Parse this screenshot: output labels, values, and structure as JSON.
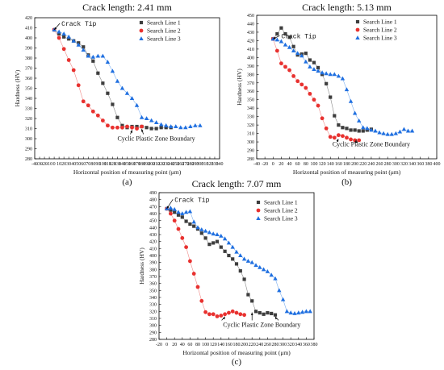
{
  "colors": {
    "search_line_1": "#3d3d3d",
    "search_line_2": "#e8312f",
    "search_line_3": "#1f6fe0",
    "axis": "#000000"
  },
  "chart_data": [
    {
      "type": "scatter",
      "panel_label": "(a)",
      "title": "Crack length: 2.41 mm",
      "xlabel": "Horizontal position of measuring point (μm)",
      "ylabel": "Hardness (HV)",
      "xlim": [
        -40,
        340
      ],
      "ylim": [
        280,
        420
      ],
      "xticks": [
        -40,
        -30,
        -20,
        -10,
        0,
        10,
        20,
        30,
        40,
        50,
        60,
        70,
        80,
        90,
        100,
        110,
        120,
        130,
        140,
        150,
        160,
        170,
        180,
        190,
        200,
        210,
        220,
        230,
        240,
        250,
        260,
        270,
        280,
        290,
        300,
        310,
        320,
        330,
        340
      ],
      "xtick_labels": [
        "-40",
        "-30",
        "-20",
        "-10",
        "0",
        "10",
        "20",
        "30",
        "40",
        "50",
        "60",
        "70",
        "80",
        "90",
        "100",
        "110",
        "120",
        "130",
        "140",
        "150",
        "160",
        "170",
        "180",
        "190",
        "200",
        "210",
        "220",
        "230",
        "240",
        "250",
        "260",
        "270",
        "280",
        "290",
        "300",
        "310",
        "320",
        "330",
        "340"
      ],
      "yticks": [
        280,
        290,
        300,
        310,
        320,
        330,
        340,
        350,
        360,
        370,
        380,
        390,
        400,
        410,
        420
      ],
      "ytick_labels": [
        "280",
        "290",
        "300",
        "310",
        "320",
        "330",
        "340",
        "350",
        "360",
        "370",
        "380",
        "390",
        "400",
        "410",
        "420"
      ],
      "legend_position": "top-right",
      "grid": false,
      "series": [
        {
          "name": "Search Line 1",
          "marker": "square",
          "x": [
            0,
            10,
            20,
            30,
            40,
            50,
            60,
            70,
            80,
            90,
            100,
            110,
            120,
            130,
            140,
            150,
            160,
            170,
            180,
            190,
            200,
            210,
            220,
            230,
            240
          ],
          "y": [
            408,
            404,
            401,
            399,
            397,
            395,
            391,
            383,
            377,
            365,
            355,
            345,
            334,
            321,
            313,
            311,
            312,
            312,
            312,
            311,
            310,
            310,
            311,
            311,
            311
          ]
        },
        {
          "name": "Search Line 2",
          "marker": "circle",
          "x": [
            0,
            10,
            20,
            30,
            40,
            50,
            60,
            70,
            80,
            90,
            100,
            110,
            120,
            130,
            140,
            150,
            160,
            170,
            180
          ],
          "y": [
            408,
            400,
            389,
            378,
            368,
            353,
            337,
            333,
            327,
            323,
            318,
            313,
            311,
            311,
            311,
            312,
            311,
            310,
            312
          ]
        },
        {
          "name": "Search Line 3",
          "marker": "triangle",
          "x": [
            0,
            10,
            20,
            30,
            40,
            50,
            60,
            70,
            80,
            90,
            100,
            110,
            120,
            130,
            140,
            150,
            160,
            170,
            180,
            190,
            200,
            210,
            220,
            230,
            240,
            250,
            260,
            270,
            280,
            290,
            300
          ],
          "y": [
            408,
            406,
            404,
            401,
            397,
            393,
            388,
            382,
            381,
            382,
            382,
            376,
            367,
            357,
            350,
            345,
            340,
            333,
            321,
            320,
            318,
            316,
            314,
            313,
            312,
            312,
            311,
            311,
            312,
            313,
            313
          ]
        }
      ],
      "annotations": [
        {
          "text": "Crack Tip",
          "point_to": [
            0,
            408
          ],
          "text_at": [
            15,
            412
          ],
          "mono": true
        },
        {
          "text": "Cyclic Plastic Zone Boundary",
          "point_to": [
            [
              160,
              311
            ],
            [
              180,
              312
            ]
          ],
          "text_at": [
            130,
            298
          ],
          "mono": false
        }
      ]
    },
    {
      "type": "scatter",
      "panel_label": "(b)",
      "title": "Crack length: 5.13 mm",
      "xlabel": "Horizontal position of measuring point (μm)",
      "ylabel": "Hardness (HV)",
      "xlim": [
        -40,
        400
      ],
      "ylim": [
        280,
        450
      ],
      "xticks": [
        -40,
        -20,
        0,
        20,
        40,
        60,
        80,
        100,
        120,
        140,
        160,
        180,
        200,
        220,
        240,
        260,
        280,
        300,
        320,
        340,
        360,
        380,
        400
      ],
      "xtick_labels": [
        "-40",
        "-20",
        "0",
        "20",
        "40",
        "60",
        "80",
        "100",
        "120",
        "140",
        "160",
        "180",
        "200",
        "220",
        "240",
        "260",
        "280",
        "300",
        "320",
        "340",
        "360",
        "380",
        "400"
      ],
      "yticks": [
        280,
        290,
        300,
        310,
        320,
        330,
        340,
        350,
        360,
        370,
        380,
        390,
        400,
        410,
        420,
        430,
        440,
        450
      ],
      "ytick_labels": [
        "280",
        "290",
        "300",
        "310",
        "320",
        "330",
        "340",
        "350",
        "360",
        "370",
        "380",
        "390",
        "400",
        "410",
        "420",
        "430",
        "440",
        "450"
      ],
      "legend_position": "top-right",
      "grid": false,
      "series": [
        {
          "name": "Search Line 1",
          "marker": "square",
          "x": [
            0,
            10,
            20,
            30,
            40,
            50,
            60,
            70,
            80,
            90,
            100,
            110,
            120,
            130,
            140,
            150,
            160,
            170,
            180,
            190,
            200,
            210,
            220,
            230,
            240
          ],
          "y": [
            422,
            428,
            435,
            428,
            424,
            413,
            403,
            404,
            405,
            397,
            394,
            388,
            380,
            369,
            353,
            331,
            320,
            317,
            316,
            314,
            314,
            313,
            313,
            314,
            315
          ]
        },
        {
          "name": "Search Line 2",
          "marker": "circle",
          "x": [
            0,
            10,
            20,
            30,
            40,
            50,
            60,
            70,
            80,
            90,
            100,
            110,
            120,
            130,
            140,
            150,
            160,
            170,
            180,
            190,
            200,
            210
          ],
          "y": [
            422,
            408,
            393,
            389,
            385,
            378,
            372,
            368,
            364,
            357,
            350,
            343,
            328,
            316,
            306,
            305,
            308,
            307,
            305,
            303,
            302,
            302
          ]
        },
        {
          "name": "Search Line 3",
          "marker": "triangle",
          "x": [
            0,
            10,
            20,
            30,
            40,
            50,
            60,
            70,
            80,
            90,
            100,
            110,
            120,
            130,
            140,
            150,
            160,
            170,
            180,
            190,
            200,
            210,
            220,
            230,
            240,
            250,
            260,
            270,
            280,
            290,
            300,
            310,
            320,
            330,
            340
          ],
          "y": [
            422,
            421,
            419,
            415,
            412,
            408,
            405,
            402,
            395,
            389,
            386,
            384,
            382,
            381,
            380,
            380,
            378,
            375,
            362,
            348,
            334,
            325,
            317,
            316,
            314,
            313,
            311,
            310,
            309,
            309,
            310,
            312,
            315,
            313,
            313
          ]
        }
      ],
      "annotations": [
        {
          "text": "Crack Tip",
          "point_to": [
            0,
            422
          ],
          "text_at": [
            20,
            423
          ],
          "mono": true
        },
        {
          "text": "Cyclic Plastic Zone Boundary",
          "point_to": [
            [
              160,
              306
            ],
            [
              200,
              302
            ]
          ],
          "text_at": [
            145,
            295
          ],
          "mono": false
        }
      ]
    },
    {
      "type": "scatter",
      "panel_label": "(c)",
      "title": "Crack length: 7.07 mm",
      "xlabel": "Horizontal position of measuring point (μm)",
      "ylabel": "Hardness (HV)",
      "xlim": [
        -20,
        380
      ],
      "ylim": [
        280,
        490
      ],
      "xticks": [
        -20,
        0,
        20,
        40,
        60,
        80,
        100,
        120,
        140,
        160,
        180,
        200,
        220,
        240,
        260,
        280,
        300,
        320,
        340,
        360,
        380
      ],
      "xtick_labels": [
        "-20",
        "0",
        "20",
        "40",
        "60",
        "80",
        "100",
        "120",
        "140",
        "160",
        "180",
        "200",
        "220",
        "240",
        "260",
        "280",
        "300",
        "320",
        "340",
        "360",
        "380"
      ],
      "yticks": [
        280,
        290,
        300,
        310,
        320,
        330,
        340,
        350,
        360,
        370,
        380,
        390,
        400,
        410,
        420,
        430,
        440,
        450,
        460,
        470,
        480,
        490
      ],
      "ytick_labels": [
        "280",
        "290",
        "300",
        "310",
        "320",
        "330",
        "340",
        "350",
        "360",
        "370",
        "380",
        "390",
        "400",
        "410",
        "420",
        "430",
        "440",
        "450",
        "460",
        "470",
        "480",
        "490"
      ],
      "legend_position": "top-right",
      "grid": false,
      "series": [
        {
          "name": "Search Line 1",
          "marker": "square",
          "x": [
            0,
            10,
            20,
            30,
            40,
            50,
            60,
            70,
            80,
            90,
            100,
            110,
            120,
            130,
            140,
            150,
            160,
            170,
            180,
            190,
            200,
            210,
            220,
            230,
            240,
            250,
            260,
            270,
            280
          ],
          "y": [
            467,
            465,
            462,
            458,
            455,
            449,
            445,
            442,
            438,
            432,
            425,
            416,
            418,
            420,
            412,
            406,
            400,
            395,
            388,
            378,
            366,
            344,
            335,
            320,
            318,
            316,
            318,
            317,
            315
          ]
        },
        {
          "name": "Search Line 2",
          "marker": "circle",
          "x": [
            0,
            10,
            20,
            30,
            40,
            50,
            60,
            70,
            80,
            90,
            100,
            110,
            120,
            130,
            140,
            150,
            160,
            170,
            180,
            190,
            200
          ],
          "y": [
            467,
            460,
            450,
            438,
            425,
            412,
            392,
            374,
            355,
            335,
            319,
            316,
            316,
            313,
            314,
            316,
            318,
            320,
            318,
            316,
            315
          ]
        },
        {
          "name": "Search Line 3",
          "marker": "triangle",
          "x": [
            0,
            10,
            20,
            30,
            40,
            50,
            60,
            70,
            80,
            90,
            100,
            110,
            120,
            130,
            140,
            150,
            160,
            170,
            180,
            190,
            200,
            210,
            220,
            230,
            240,
            250,
            260,
            270,
            280,
            290,
            300,
            310,
            320,
            330,
            340,
            350,
            360,
            370
          ],
          "y": [
            467,
            468,
            466,
            462,
            460,
            462,
            463,
            448,
            440,
            437,
            435,
            433,
            431,
            430,
            428,
            424,
            418,
            412,
            405,
            400,
            395,
            392,
            390,
            386,
            383,
            380,
            377,
            372,
            367,
            350,
            337,
            320,
            318,
            317,
            318,
            319,
            320,
            320
          ]
        }
      ],
      "annotations": [
        {
          "text": "Crack Tip",
          "point_to": [
            0,
            467
          ],
          "text_at": [
            20,
            477
          ],
          "mono": true
        },
        {
          "text": "Cyclic Plastic Zone Boundary",
          "point_to": [
            [
              150,
              316
            ],
            [
              220,
              322
            ],
            [
              280,
              316
            ]
          ],
          "text_at": [
            145,
            298
          ],
          "mono": false
        }
      ]
    }
  ]
}
